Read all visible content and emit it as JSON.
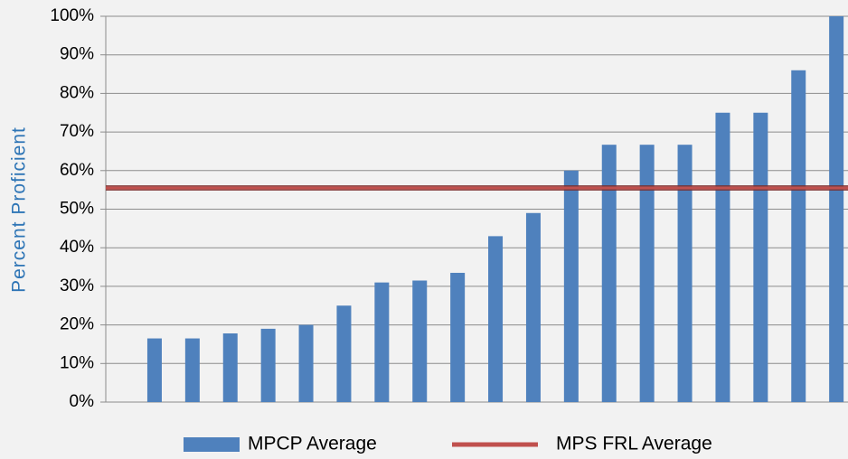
{
  "chart_data": {
    "type": "bar",
    "y_label": "Percent Proficient",
    "ylim": [
      0,
      100
    ],
    "yticks": [
      {
        "value": 0,
        "label": "0%"
      },
      {
        "value": 10,
        "label": "10%"
      },
      {
        "value": 20,
        "label": "20%"
      },
      {
        "value": 30,
        "label": "30%"
      },
      {
        "value": 40,
        "label": "40%"
      },
      {
        "value": 50,
        "label": "50%"
      },
      {
        "value": 60,
        "label": "60%"
      },
      {
        "value": 70,
        "label": "70%"
      },
      {
        "value": 80,
        "label": "80%"
      },
      {
        "value": 90,
        "label": "90%"
      },
      {
        "value": 100,
        "label": "100%"
      }
    ],
    "grid": true,
    "legend": "bottom",
    "series": [
      {
        "name": "MPCP Average",
        "type": "bar",
        "color": "#4f81bd",
        "values": [
          16.5,
          16.5,
          17.8,
          19,
          20,
          25,
          31,
          31.5,
          33.5,
          43,
          49,
          60,
          66.7,
          66.7,
          66.7,
          75,
          75,
          86,
          100
        ]
      },
      {
        "name": "MPS FRL Average",
        "type": "hline",
        "color": "#c0504d",
        "values": [
          55.5
        ]
      }
    ]
  }
}
